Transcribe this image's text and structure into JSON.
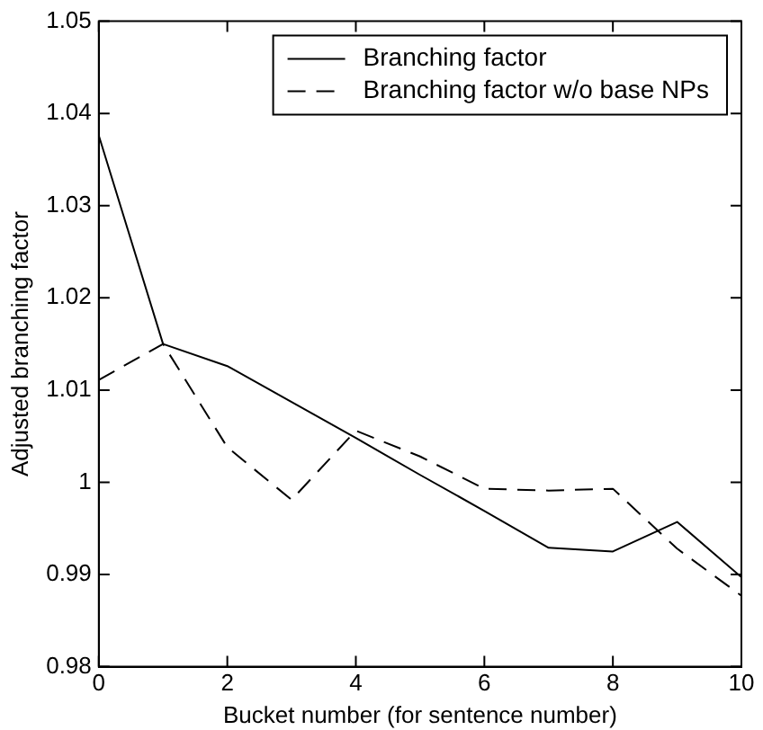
{
  "chart_data": {
    "type": "line",
    "xlabel": "Bucket number (for sentence number)",
    "ylabel": "Adjusted branching factor",
    "x": [
      0,
      1,
      2,
      3,
      4,
      5,
      6,
      7,
      8,
      9,
      10
    ],
    "series": [
      {
        "name": "Branching factor",
        "color": "#000000",
        "line_style": "solid",
        "values": [
          1.0376,
          1.015,
          1.0126,
          1.0087,
          1.0048,
          1.0008,
          0.9969,
          0.9929,
          0.9925,
          0.9957,
          0.9897
        ]
      },
      {
        "name": "Branching factor w/o base NPs",
        "color": "#000000",
        "line_style": "dashed",
        "values": [
          1.0111,
          1.015,
          1.0038,
          0.9981,
          1.0056,
          1.0028,
          0.9993,
          0.9991,
          0.9993,
          0.9928,
          0.9877
        ]
      }
    ],
    "xlim": [
      0,
      10
    ],
    "xticks": [
      0,
      2,
      4,
      6,
      8,
      10
    ],
    "ylim": [
      0.98,
      1.05
    ],
    "yticks": [
      0.98,
      0.99,
      1,
      1.01,
      1.02,
      1.03,
      1.04,
      1.05
    ],
    "grid": false,
    "legend": "top right",
    "marker": "none"
  }
}
